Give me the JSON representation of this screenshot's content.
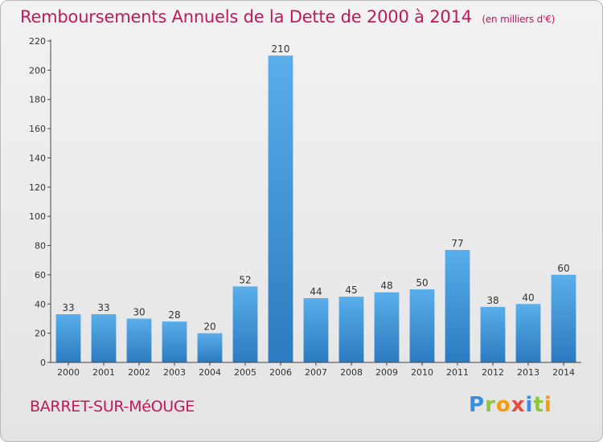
{
  "chart_data": {
    "type": "bar",
    "title": "Remboursements Annuels de la Dette de 2000 à 2014",
    "subtitle": "(en milliers d'€)",
    "categories": [
      "2000",
      "2001",
      "2002",
      "2003",
      "2004",
      "2005",
      "2006",
      "2007",
      "2008",
      "2009",
      "2010",
      "2011",
      "2012",
      "2013",
      "2014"
    ],
    "values": [
      33,
      33,
      30,
      28,
      20,
      52,
      210,
      44,
      45,
      48,
      50,
      77,
      38,
      40,
      60
    ],
    "ylim": [
      0,
      220
    ],
    "yticks": [
      0,
      20,
      40,
      60,
      80,
      100,
      120,
      140,
      160,
      180,
      200,
      220
    ],
    "grid": false,
    "bar_color": "#3a8fd6"
  },
  "footer": {
    "commune": "BARRET-SUR-MéOUGE",
    "logo_letters": [
      "P",
      "r",
      "o",
      "x",
      "i",
      "t",
      "i"
    ],
    "logo_colors": [
      "#3b8ede",
      "#8cc63f",
      "#f39c12",
      "#e74c3c",
      "#3b8ede",
      "#8cc63f",
      "#f39c12"
    ]
  }
}
